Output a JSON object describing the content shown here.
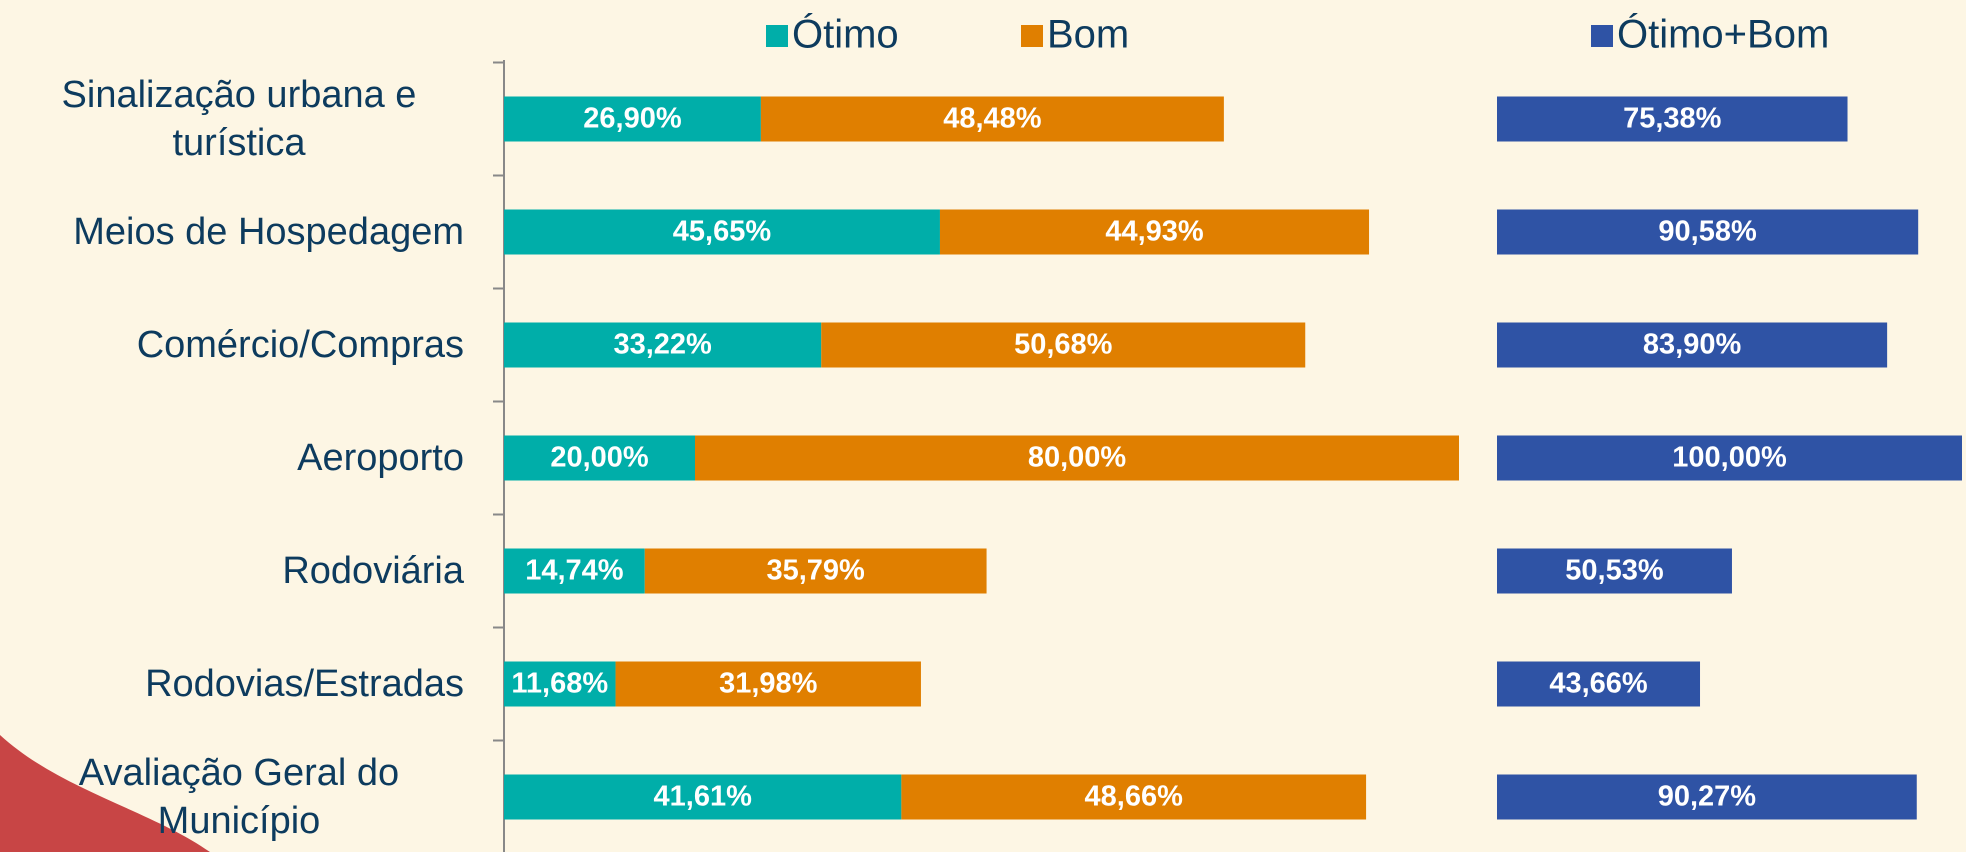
{
  "chart_data": [
    {
      "type": "bar",
      "orientation": "horizontal",
      "stacked": true,
      "categories": [
        "Sinalização urbana e turística",
        "Meios de Hospedagem",
        "Comércio/Compras",
        "Aeroporto",
        "Rodoviária",
        "Rodovias/Estradas",
        "Avaliação Geral do Município"
      ],
      "series": [
        {
          "name": "Ótimo",
          "color": "#00aea9",
          "values": [
            26.9,
            45.65,
            33.22,
            20.0,
            14.74,
            11.68,
            41.61
          ],
          "value_labels": [
            "26,90%",
            "45,65%",
            "33,22%",
            "20,00%",
            "14,74%",
            "11,68%",
            "41,61%"
          ]
        },
        {
          "name": "Bom",
          "color": "#e07f00",
          "values": [
            48.48,
            44.93,
            50.68,
            80.0,
            35.79,
            31.98,
            48.66
          ],
          "value_labels": [
            "48,48%",
            "44,93%",
            "50,68%",
            "80,00%",
            "35,79%",
            "31,98%",
            "48,66%"
          ]
        }
      ],
      "xlim": [
        0,
        100
      ]
    },
    {
      "type": "bar",
      "orientation": "horizontal",
      "series": [
        {
          "name": "Ótimo+Bom",
          "color": "#2f53a5",
          "values": [
            75.38,
            90.58,
            83.9,
            100.0,
            50.53,
            43.66,
            90.27
          ],
          "value_labels": [
            "75,38%",
            "90,58%",
            "83,90%",
            "100,00%",
            "50,53%",
            "43,66%",
            "90,27%"
          ]
        }
      ],
      "xlim": [
        0,
        100
      ]
    }
  ]
}
